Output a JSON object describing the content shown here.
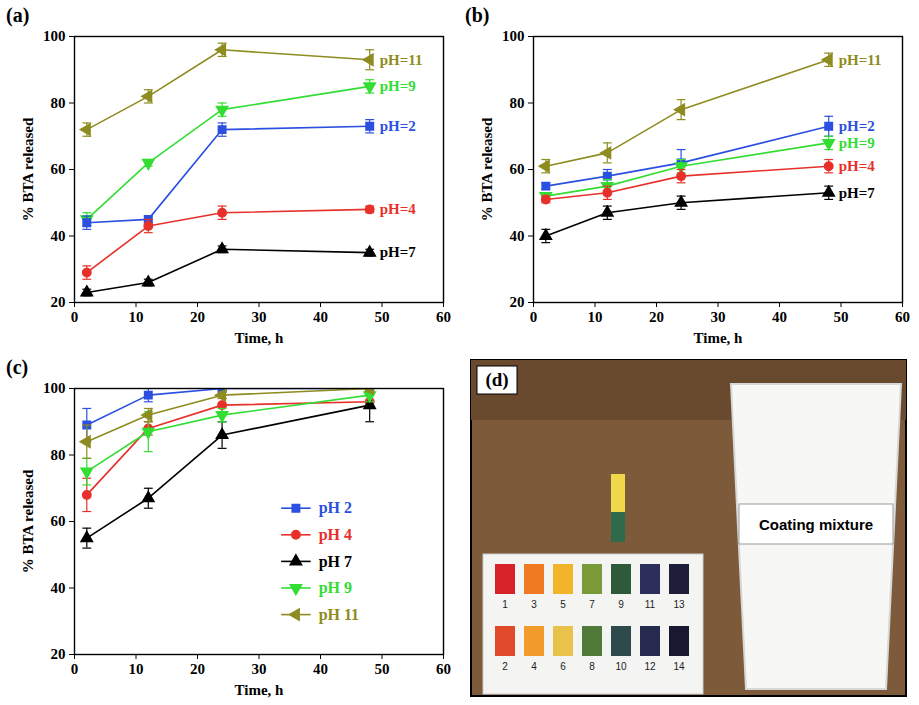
{
  "chart_data": [
    {
      "type": "line",
      "panel": "(a)",
      "x_label": "Time, h",
      "y_label": "% BTA released",
      "x": [
        2,
        12,
        24,
        48
      ],
      "xlim": [
        0,
        60
      ],
      "xticks": [
        0,
        10,
        20,
        30,
        40,
        50,
        60
      ],
      "ylim": [
        20,
        100
      ],
      "yticks": [
        20,
        40,
        60,
        80,
        100
      ],
      "legend": "right",
      "series": [
        {
          "name": "pH=11",
          "color": "#8e8c20",
          "marker": "triangle_left",
          "values": [
            72,
            82,
            96,
            93
          ],
          "errors": [
            2,
            2,
            2,
            3
          ]
        },
        {
          "name": "pH=9",
          "color": "#33dd33",
          "marker": "triangle_down",
          "values": [
            45,
            62,
            78,
            85
          ],
          "errors": [
            2,
            1,
            2,
            2
          ]
        },
        {
          "name": "pH=2",
          "color": "#2b4fe0",
          "marker": "square",
          "values": [
            44,
            45,
            72,
            73
          ],
          "errors": [
            2,
            1,
            2,
            2
          ]
        },
        {
          "name": "pH=4",
          "color": "#e8302a",
          "marker": "circle",
          "values": [
            29,
            43,
            47,
            48
          ],
          "errors": [
            2,
            2,
            2,
            1
          ]
        },
        {
          "name": "pH=7",
          "color": "#000000",
          "marker": "triangle",
          "values": [
            23,
            26,
            36,
            35
          ],
          "errors": [
            1,
            1,
            1,
            1
          ]
        }
      ]
    },
    {
      "type": "line",
      "panel": "(b)",
      "x_label": "Time, h",
      "y_label": "% BTA released",
      "x": [
        2,
        12,
        24,
        48
      ],
      "xlim": [
        0,
        60
      ],
      "xticks": [
        0,
        10,
        20,
        30,
        40,
        50,
        60
      ],
      "ylim": [
        20,
        100
      ],
      "yticks": [
        20,
        40,
        60,
        80,
        100
      ],
      "legend": "right",
      "series": [
        {
          "name": "pH=11",
          "color": "#8e8c20",
          "marker": "triangle_left",
          "values": [
            61,
            65,
            78,
            93
          ],
          "errors": [
            2,
            3,
            3,
            2
          ]
        },
        {
          "name": "pH=2",
          "color": "#2b4fe0",
          "marker": "square",
          "values": [
            55,
            58,
            62,
            73
          ],
          "errors": [
            1,
            2,
            4,
            3
          ]
        },
        {
          "name": "pH=9",
          "color": "#33dd33",
          "marker": "triangle_down",
          "values": [
            52,
            55,
            61,
            68
          ],
          "errors": [
            1,
            2,
            2,
            2
          ]
        },
        {
          "name": "pH=4",
          "color": "#e8302a",
          "marker": "circle",
          "values": [
            51,
            53,
            58,
            61
          ],
          "errors": [
            1,
            2,
            2,
            2
          ]
        },
        {
          "name": "pH=7",
          "color": "#000000",
          "marker": "triangle",
          "values": [
            40,
            47,
            50,
            53
          ],
          "errors": [
            2,
            2,
            2,
            2
          ]
        }
      ]
    },
    {
      "type": "line",
      "panel": "(c)",
      "x_label": "Time, h",
      "y_label": "% BTA released",
      "x": [
        2,
        12,
        24,
        48
      ],
      "xlim": [
        0,
        60
      ],
      "xticks": [
        0,
        10,
        20,
        30,
        40,
        50,
        60
      ],
      "ylim": [
        20,
        100
      ],
      "yticks": [
        20,
        40,
        60,
        80,
        100
      ],
      "legend": "lower right",
      "series": [
        {
          "name": "pH 2",
          "color": "#2b4fe0",
          "marker": "square",
          "values": [
            89,
            98,
            100,
            100
          ],
          "errors": [
            5,
            2,
            0.5,
            0.5
          ]
        },
        {
          "name": "pH 4",
          "color": "#e8302a",
          "marker": "circle",
          "values": [
            68,
            88,
            95,
            96
          ],
          "errors": [
            5,
            2,
            2,
            2
          ]
        },
        {
          "name": "pH 7",
          "color": "#000000",
          "marker": "triangle",
          "values": [
            55,
            67,
            86,
            95
          ],
          "errors": [
            3,
            3,
            4,
            5
          ]
        },
        {
          "name": "pH 9",
          "color": "#33dd33",
          "marker": "triangle_down",
          "values": [
            75,
            87,
            92,
            98
          ],
          "errors": [
            4,
            6,
            2,
            2
          ]
        },
        {
          "name": "pH 11",
          "color": "#8e8c20",
          "marker": "triangle_left",
          "values": [
            84,
            92,
            98,
            100
          ],
          "errors": [
            5,
            2,
            1,
            1
          ]
        }
      ]
    }
  ],
  "photo": {
    "panel": "(d)",
    "label": "Coating mixture",
    "ph_scale": {
      "top": [
        1,
        3,
        5,
        7,
        9,
        11,
        13
      ],
      "bottom": [
        2,
        4,
        6,
        8,
        10,
        12,
        14
      ]
    }
  }
}
